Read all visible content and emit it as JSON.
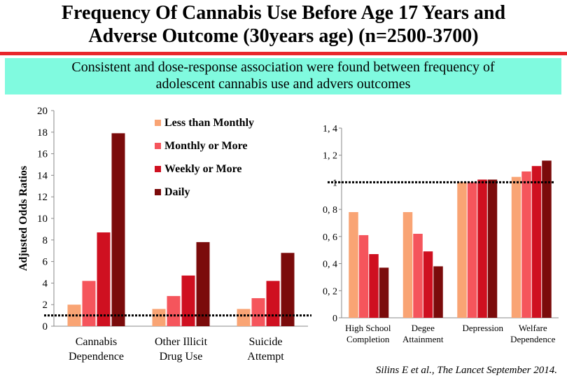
{
  "title": {
    "line1": "Frequency Of Cannabis Use Before Age 17 Years  and",
    "line2": "Adverse Outcome (30years age) (n=2500-3700)"
  },
  "banner": {
    "line1": "Consistent and dose-response association were found between frequency of",
    "line2": "adolescent cannabis use and advers  outcomes"
  },
  "citation": "Silins E et al., The Lancet September 2014.",
  "colors": {
    "less_than_monthly": "#f9a474",
    "monthly_or_more": "#f5555c",
    "weekly_or_more": "#cf1020",
    "daily": "#7b0b0b",
    "title_rule": "#e8262b",
    "banner_bg": "#80fadf"
  },
  "chart_data": [
    {
      "type": "bar",
      "ylabel": "Adjusted Odds Ratios",
      "ylim": [
        0,
        20
      ],
      "yticks": [
        "0",
        "2",
        "4",
        "6",
        "8",
        "10",
        "12",
        "14",
        "16",
        "18",
        "20"
      ],
      "reference_line": 1,
      "legend_position": "top-right",
      "categories": [
        [
          "Cannabis",
          "Dependence"
        ],
        [
          "Other Illicit",
          "Drug Use"
        ],
        [
          "Suicide",
          "Attempt"
        ]
      ],
      "series": [
        {
          "name": "Less than Monthly",
          "values": [
            2.0,
            1.6,
            1.6
          ]
        },
        {
          "name": "Monthly or More",
          "values": [
            4.2,
            2.8,
            2.6
          ]
        },
        {
          "name": "Weekly or More",
          "values": [
            8.7,
            4.7,
            4.2
          ]
        },
        {
          "name": "Daily",
          "values": [
            17.9,
            7.8,
            6.8
          ]
        }
      ]
    },
    {
      "type": "bar",
      "ylim": [
        0,
        1.4
      ],
      "yticks": [
        "0",
        "0, 2",
        "0, 4",
        "0, 6",
        "0, 8",
        "1",
        "1, 2",
        "1, 4"
      ],
      "reference_line": 1,
      "categories": [
        [
          "High School",
          "Completion"
        ],
        [
          "Degee",
          "Attainment"
        ],
        [
          "Depression"
        ],
        [
          "Welfare",
          "Dependence"
        ]
      ],
      "series": [
        {
          "name": "Less than Monthly",
          "values": [
            0.78,
            0.78,
            1.0,
            1.04
          ]
        },
        {
          "name": "Monthly or More",
          "values": [
            0.61,
            0.62,
            1.0,
            1.08
          ]
        },
        {
          "name": "Weekly or More",
          "values": [
            0.47,
            0.49,
            1.02,
            1.12
          ]
        },
        {
          "name": "Daily",
          "values": [
            0.37,
            0.38,
            1.02,
            1.16
          ]
        }
      ]
    }
  ]
}
